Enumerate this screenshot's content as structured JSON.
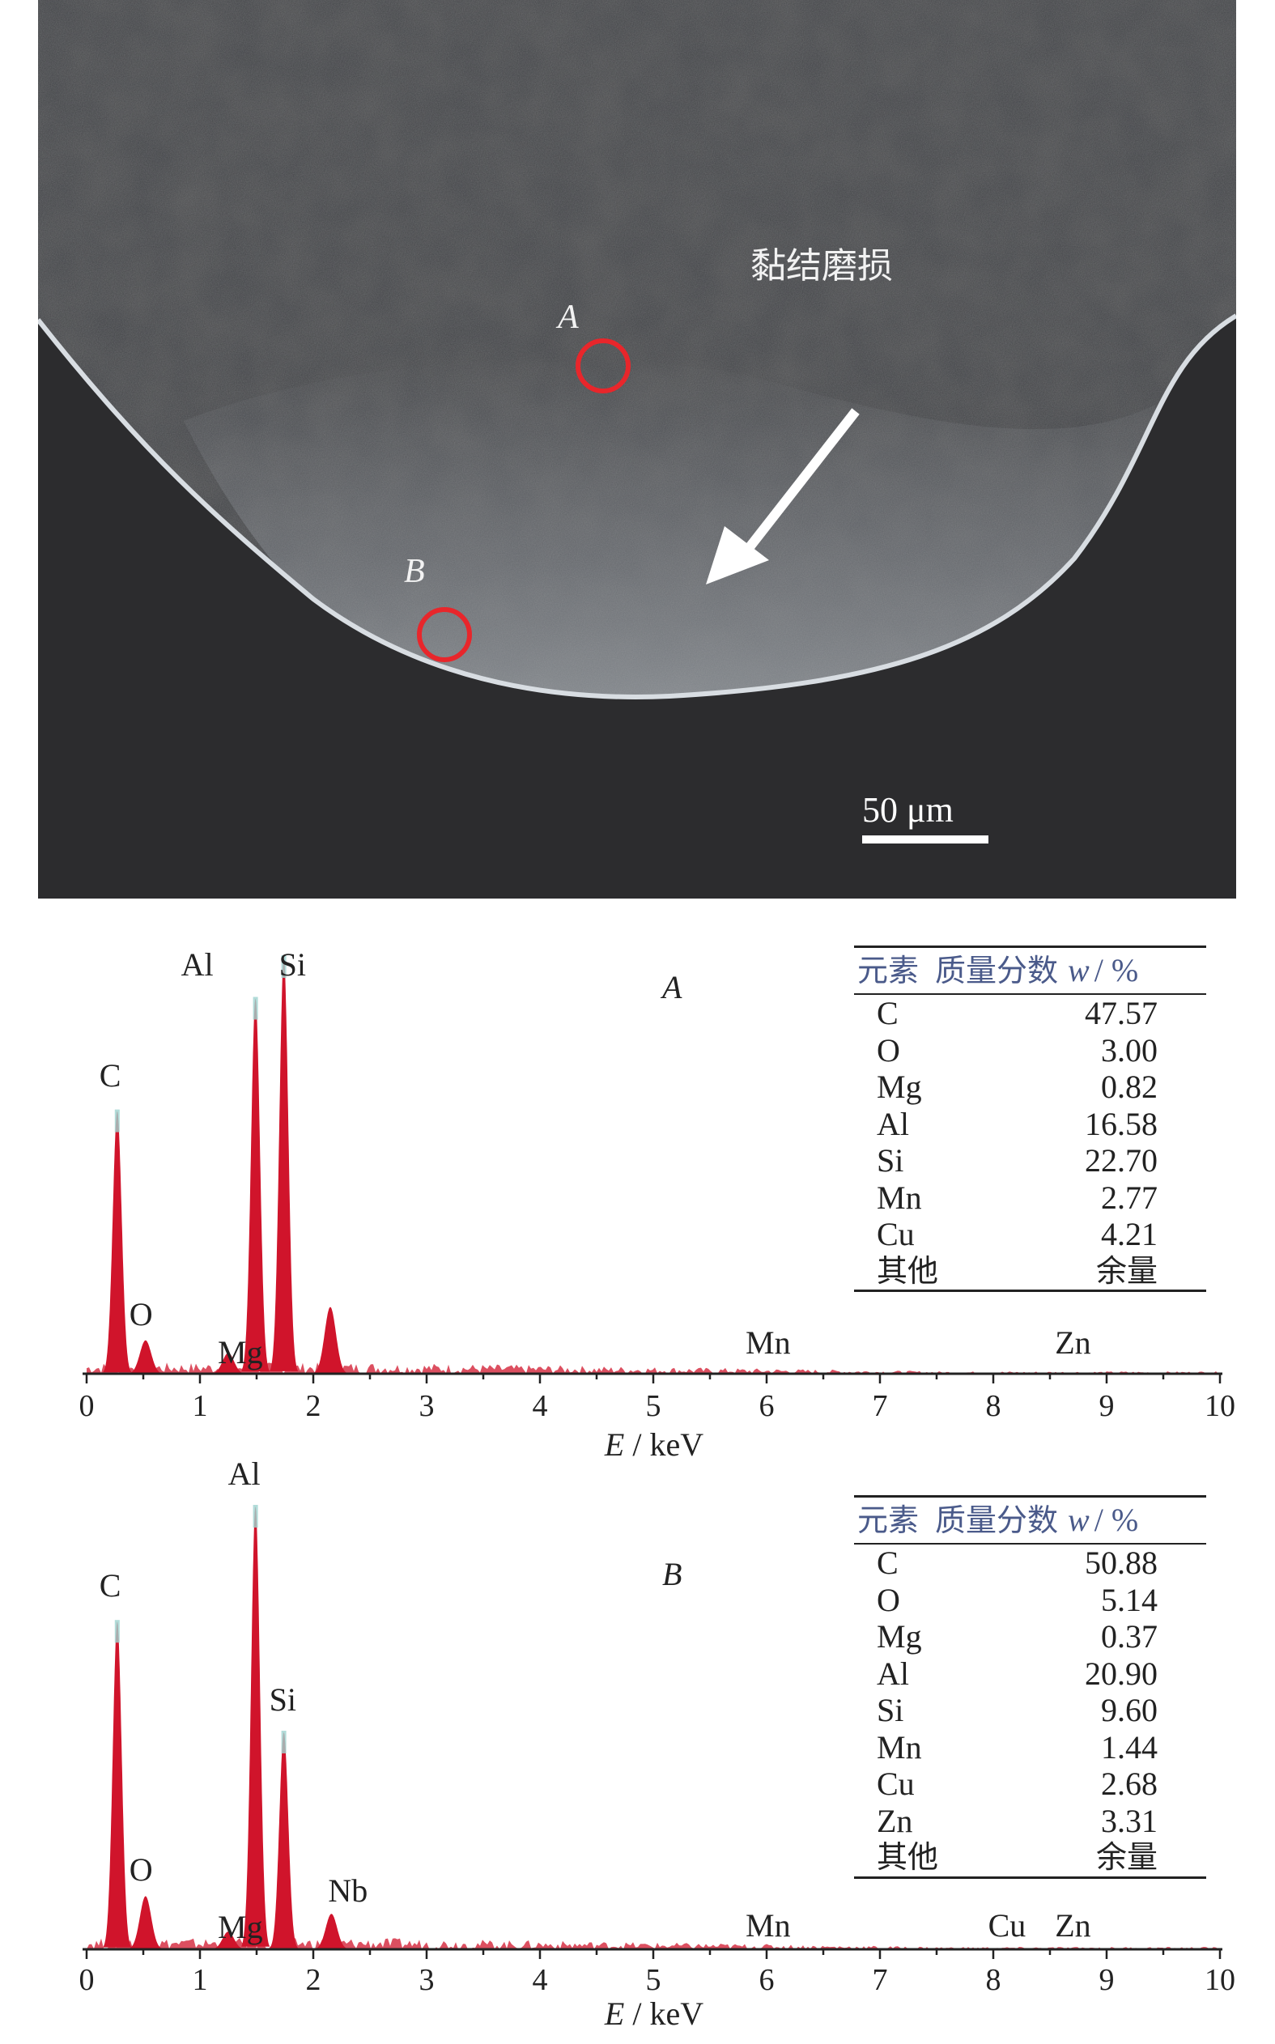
{
  "micrograph": {
    "region_label": "黏结磨损",
    "point_a_label": "A",
    "point_b_label": "B",
    "scale_bar_label": "50 μm",
    "marker_color": "#e8262b"
  },
  "chart_data": [
    {
      "type": "bar",
      "id": "A",
      "xlabel_var": "E",
      "xlabel_unit": " / keV",
      "xlim": [
        0,
        10
      ],
      "xticks": [
        0,
        1,
        2,
        3,
        4,
        5,
        6,
        7,
        8,
        9,
        10
      ],
      "series_color": "#d0142b",
      "peaks": [
        {
          "label": "C",
          "x": 0.27,
          "height": 0.63
        },
        {
          "label": "O",
          "x": 0.52,
          "height": 0.08
        },
        {
          "label": "Mg",
          "x": 1.25,
          "height": 0.05
        },
        {
          "label": "Al",
          "x": 1.49,
          "height": 0.9
        },
        {
          "label": "Si",
          "x": 1.74,
          "height": 1.0
        },
        {
          "label": "",
          "x": 2.15,
          "height": 0.16
        },
        {
          "label": "Mn",
          "x": 5.9,
          "height": 0.02
        },
        {
          "label": "Zn",
          "x": 8.63,
          "height": 0.02
        }
      ],
      "table": {
        "header_element": "元素",
        "header_fraction": "质量分数",
        "header_symbol": "w",
        "header_unit": "/ %",
        "rows": [
          {
            "element": "C",
            "value": "47.57"
          },
          {
            "element": "O",
            "value": "3.00"
          },
          {
            "element": "Mg",
            "value": "0.82"
          },
          {
            "element": "Al",
            "value": "16.58"
          },
          {
            "element": "Si",
            "value": "22.70"
          },
          {
            "element": "Mn",
            "value": "2.77"
          },
          {
            "element": "Cu",
            "value": "4.21"
          },
          {
            "element": "其他",
            "value": "余量"
          }
        ]
      }
    },
    {
      "type": "bar",
      "id": "B",
      "xlabel_var": "E",
      "xlabel_unit": " / keV",
      "xlim": [
        0,
        10
      ],
      "xticks": [
        0,
        1,
        2,
        3,
        4,
        5,
        6,
        7,
        8,
        9,
        10
      ],
      "series_color": "#d0142b",
      "peaks": [
        {
          "label": "C",
          "x": 0.27,
          "height": 0.74
        },
        {
          "label": "O",
          "x": 0.52,
          "height": 0.12
        },
        {
          "label": "Mg",
          "x": 1.25,
          "height": 0.04
        },
        {
          "label": "Al",
          "x": 1.49,
          "height": 1.0
        },
        {
          "label": "Si",
          "x": 1.74,
          "height": 0.49
        },
        {
          "label": "Nb",
          "x": 2.16,
          "height": 0.08
        },
        {
          "label": "Mn",
          "x": 5.9,
          "height": 0.01
        },
        {
          "label": "Cu",
          "x": 8.04,
          "height": 0.01
        },
        {
          "label": "Zn",
          "x": 8.63,
          "height": 0.01
        }
      ],
      "table": {
        "header_element": "元素",
        "header_fraction": "质量分数",
        "header_symbol": "w",
        "header_unit": "/ %",
        "rows": [
          {
            "element": "C",
            "value": "50.88"
          },
          {
            "element": "O",
            "value": "5.14"
          },
          {
            "element": "Mg",
            "value": "0.37"
          },
          {
            "element": "Al",
            "value": "20.90"
          },
          {
            "element": "Si",
            "value": "9.60"
          },
          {
            "element": "Mn",
            "value": "1.44"
          },
          {
            "element": "Cu",
            "value": "2.68"
          },
          {
            "element": "Zn",
            "value": "3.31"
          },
          {
            "element": "其他",
            "value": "余量"
          }
        ]
      }
    }
  ]
}
